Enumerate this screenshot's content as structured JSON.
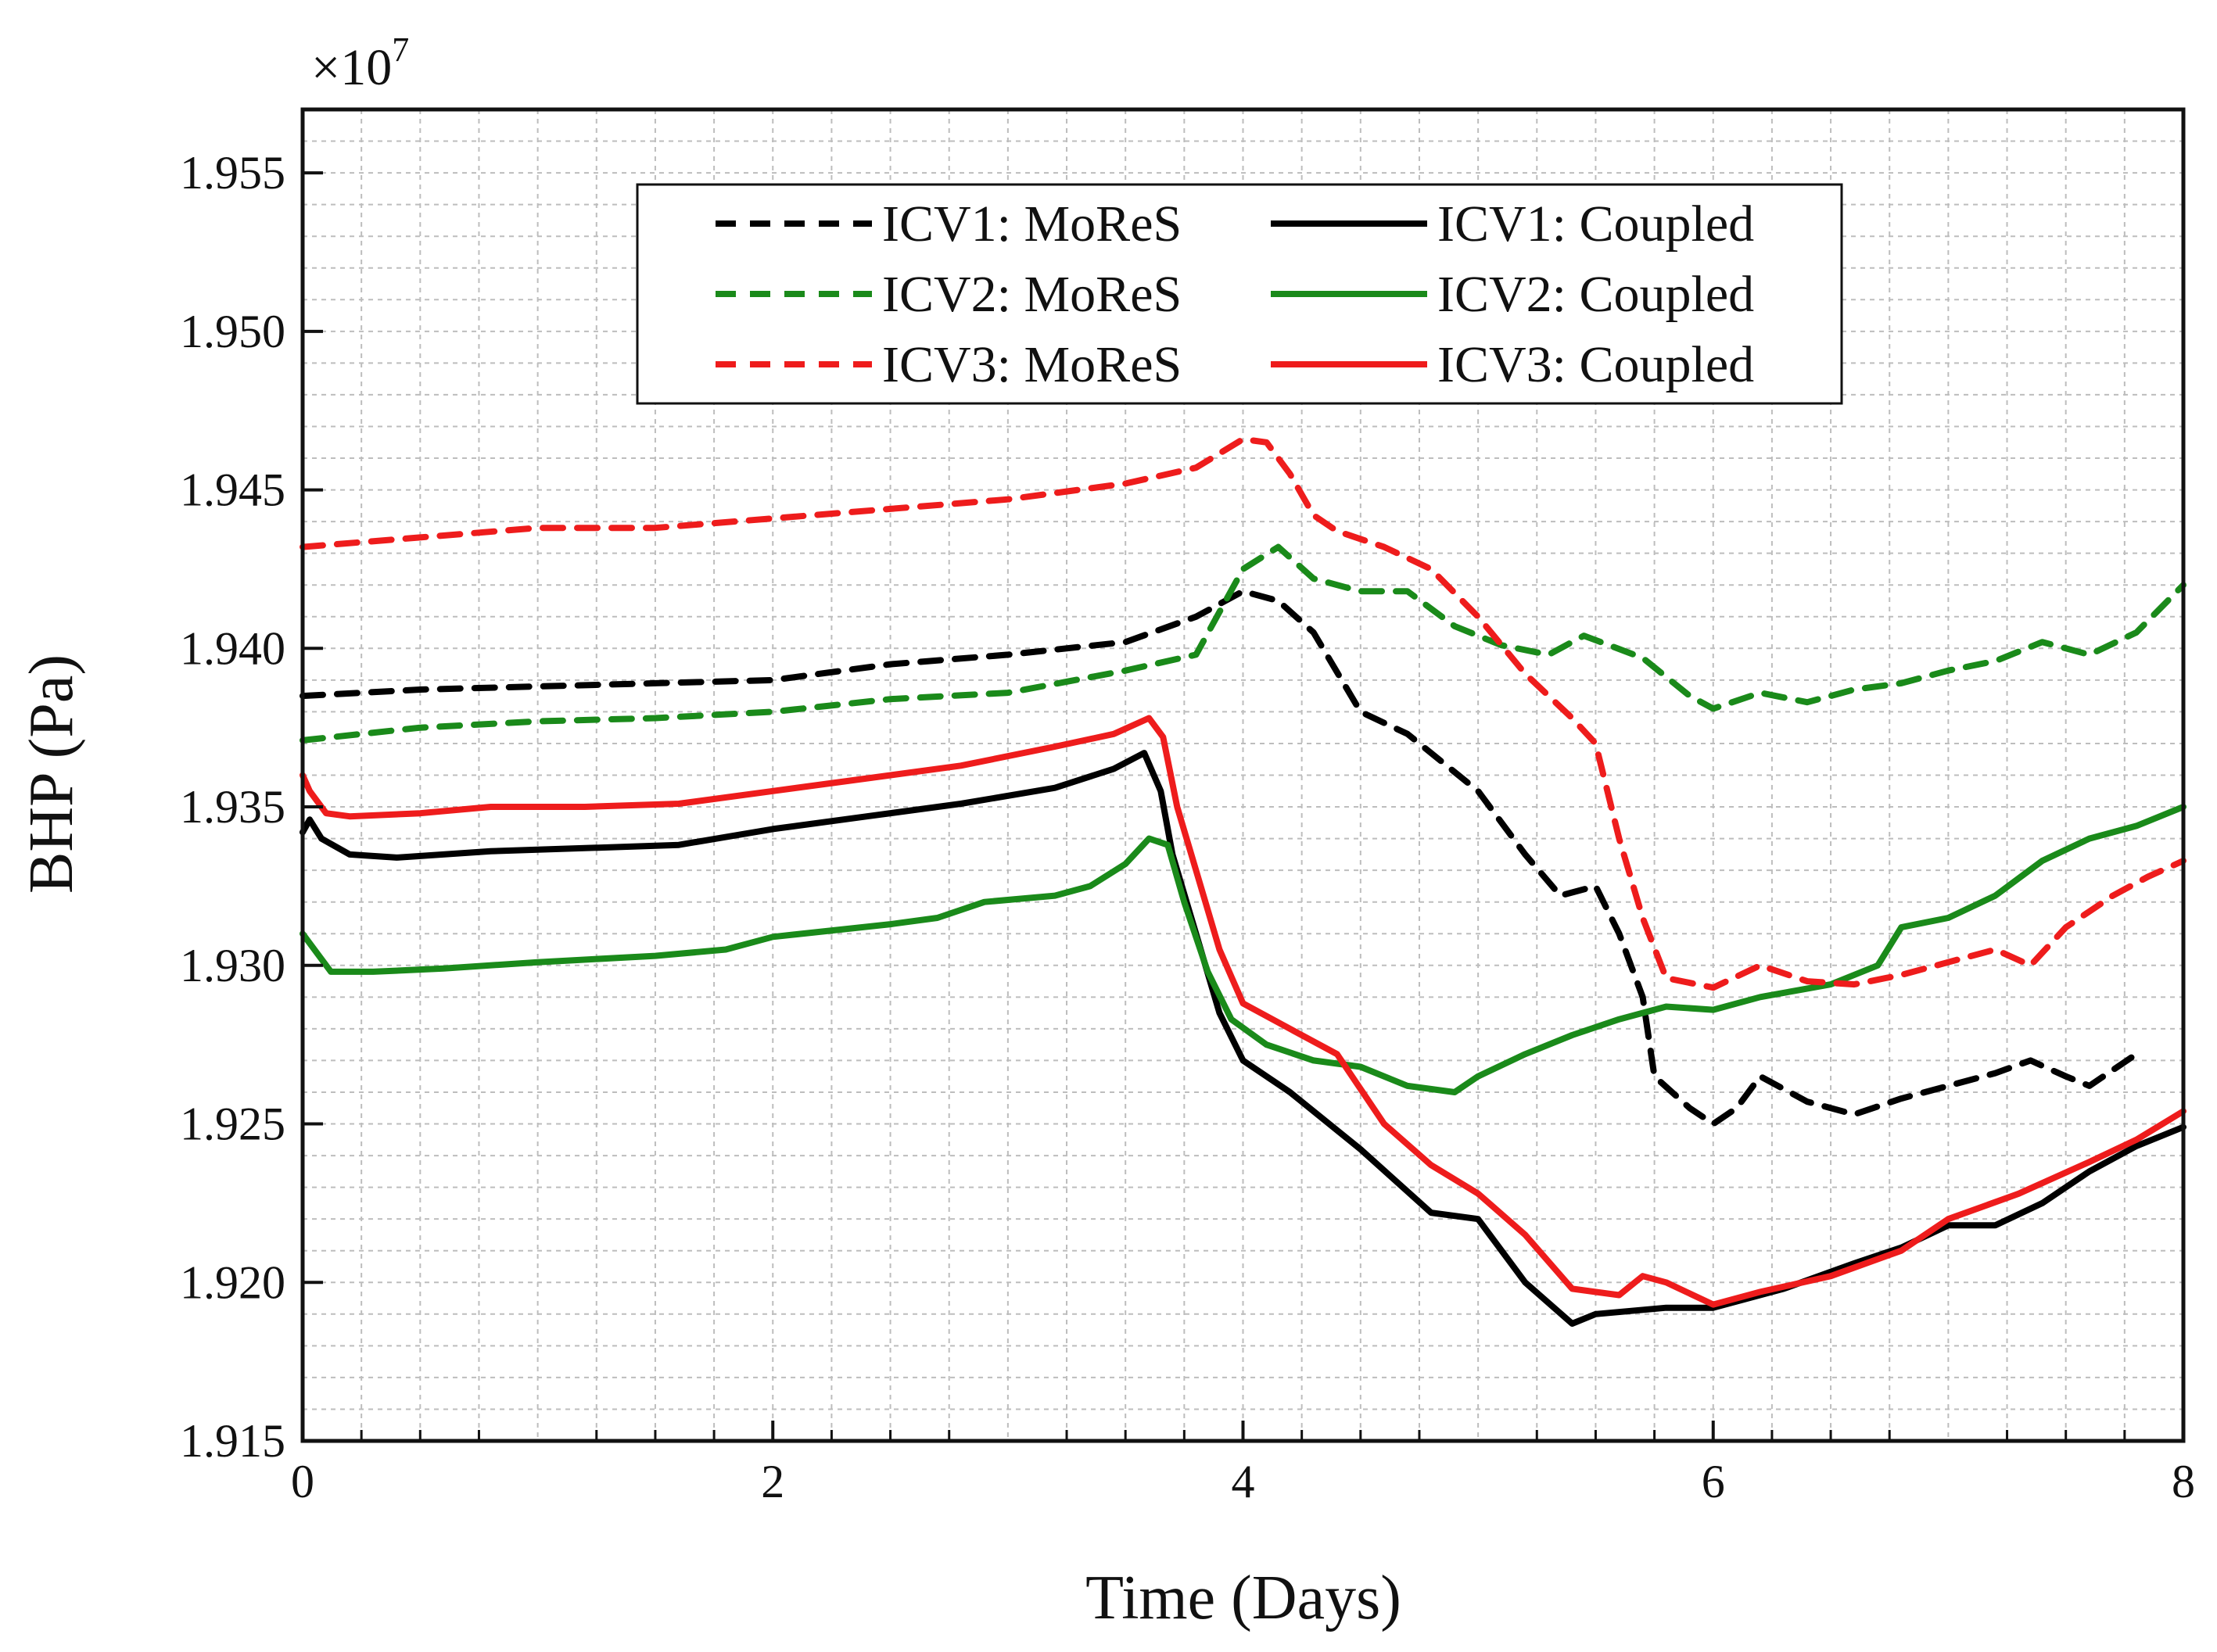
{
  "chart_data": {
    "type": "line",
    "title": "",
    "xlabel": "Time (Days)",
    "ylabel": "BHP (Pa)",
    "y_multiplier": "×10",
    "y_exponent": "7",
    "xlim": [
      0,
      8
    ],
    "ylim": [
      1.915,
      1.957
    ],
    "xticks": [
      0,
      2,
      4,
      6,
      8
    ],
    "yticks": [
      1.915,
      1.92,
      1.925,
      1.93,
      1.935,
      1.94,
      1.945,
      1.95,
      1.955
    ],
    "ytick_labels": [
      "1.915",
      "1.920",
      "1.925",
      "1.930",
      "1.935",
      "1.940",
      "1.945",
      "1.950",
      "1.955"
    ],
    "grid": true,
    "legend_position": "top-center",
    "series": [
      {
        "name": "ICV1: MoReS",
        "color": "#000000",
        "dashed": true,
        "x": [
          0,
          0.5,
          1.0,
          1.5,
          2.0,
          2.5,
          3.0,
          3.5,
          3.8,
          4.0,
          4.15,
          4.3,
          4.5,
          4.7,
          5.0,
          5.2,
          5.35,
          5.5,
          5.6,
          5.7,
          5.75,
          5.9,
          6.0,
          6.1,
          6.2,
          6.4,
          6.6,
          6.8,
          7.0,
          7.2,
          7.35,
          7.5,
          7.6,
          7.8
        ],
        "y": [
          1.9385,
          1.9387,
          1.9388,
          1.9389,
          1.939,
          1.9395,
          1.9398,
          1.9402,
          1.941,
          1.9418,
          1.9415,
          1.9405,
          1.938,
          1.9373,
          1.9355,
          1.9335,
          1.9322,
          1.9325,
          1.931,
          1.929,
          1.9265,
          1.9255,
          1.925,
          1.9255,
          1.9265,
          1.9257,
          1.9253,
          1.9258,
          1.9262,
          1.9266,
          1.927,
          1.9265,
          1.9262,
          1.9272
        ]
      },
      {
        "name": "ICV1: Coupled",
        "color": "#000000",
        "dashed": false,
        "x": [
          0,
          0.03,
          0.08,
          0.2,
          0.4,
          0.8,
          1.2,
          1.6,
          2.0,
          2.4,
          2.8,
          3.2,
          3.45,
          3.58,
          3.65,
          3.7,
          3.8,
          3.9,
          4.0,
          4.2,
          4.5,
          4.8,
          5.0,
          5.2,
          5.4,
          5.5,
          5.8,
          6.0,
          6.3,
          6.6,
          6.8,
          7.0,
          7.2,
          7.4,
          7.6,
          7.8,
          8.0
        ],
        "y": [
          1.9342,
          1.9346,
          1.934,
          1.9335,
          1.9334,
          1.9336,
          1.9337,
          1.9338,
          1.9343,
          1.9347,
          1.9351,
          1.9356,
          1.9362,
          1.9367,
          1.9355,
          1.9335,
          1.931,
          1.9285,
          1.927,
          1.926,
          1.9242,
          1.9222,
          1.922,
          1.92,
          1.9187,
          1.919,
          1.9192,
          1.9192,
          1.9198,
          1.9206,
          1.9211,
          1.9218,
          1.9218,
          1.9225,
          1.9235,
          1.9243,
          1.9249
        ]
      },
      {
        "name": "ICV2: MoReS",
        "color": "#1a8a1a",
        "dashed": true,
        "x": [
          0,
          0.5,
          1.0,
          1.5,
          2.0,
          2.5,
          3.0,
          3.5,
          3.8,
          4.0,
          4.15,
          4.3,
          4.5,
          4.7,
          4.9,
          5.1,
          5.3,
          5.45,
          5.7,
          5.9,
          6.0,
          6.2,
          6.4,
          6.6,
          6.8,
          7.0,
          7.2,
          7.4,
          7.6,
          7.8,
          8.0
        ],
        "y": [
          1.9371,
          1.9375,
          1.9377,
          1.9378,
          1.938,
          1.9384,
          1.9386,
          1.9393,
          1.9398,
          1.9425,
          1.9432,
          1.9422,
          1.9418,
          1.9418,
          1.9407,
          1.9401,
          1.9398,
          1.9404,
          1.9397,
          1.9385,
          1.9381,
          1.9386,
          1.9383,
          1.9387,
          1.9389,
          1.9393,
          1.9396,
          1.9402,
          1.9398,
          1.9405,
          1.942
        ]
      },
      {
        "name": "ICV2: Coupled",
        "color": "#1a8a1a",
        "dashed": false,
        "x": [
          0,
          0.05,
          0.12,
          0.3,
          0.6,
          1.0,
          1.5,
          1.8,
          2.0,
          2.5,
          2.7,
          2.9,
          3.2,
          3.35,
          3.5,
          3.6,
          3.68,
          3.75,
          3.85,
          3.95,
          4.1,
          4.3,
          4.5,
          4.7,
          4.9,
          5.0,
          5.2,
          5.4,
          5.6,
          5.7,
          5.8,
          6.0,
          6.2,
          6.5,
          6.7,
          6.8,
          7.0,
          7.2,
          7.4,
          7.6,
          7.8,
          8.0
        ],
        "y": [
          1.931,
          1.9305,
          1.9298,
          1.9298,
          1.9299,
          1.9301,
          1.9303,
          1.9305,
          1.9309,
          1.9313,
          1.9315,
          1.932,
          1.9322,
          1.9325,
          1.9332,
          1.934,
          1.9338,
          1.932,
          1.9298,
          1.9283,
          1.9275,
          1.927,
          1.9268,
          1.9262,
          1.926,
          1.9265,
          1.9272,
          1.9278,
          1.9283,
          1.9285,
          1.9287,
          1.9286,
          1.929,
          1.9294,
          1.93,
          1.9312,
          1.9315,
          1.9322,
          1.9333,
          1.934,
          1.9344,
          1.935
        ]
      },
      {
        "name": "ICV3: MoReS",
        "color": "#ee1c1c",
        "dashed": true,
        "x": [
          0,
          0.5,
          1.0,
          1.5,
          2.0,
          2.5,
          3.0,
          3.5,
          3.8,
          4.0,
          4.1,
          4.2,
          4.3,
          4.4,
          4.6,
          4.8,
          5.0,
          5.2,
          5.4,
          5.5,
          5.6,
          5.7,
          5.8,
          6.0,
          6.2,
          6.4,
          6.6,
          6.8,
          7.0,
          7.2,
          7.35,
          7.5,
          7.7,
          7.85,
          8.0
        ],
        "y": [
          1.9432,
          1.9435,
          1.9438,
          1.9438,
          1.9441,
          1.9444,
          1.9447,
          1.9452,
          1.9457,
          1.9466,
          1.9465,
          1.9455,
          1.9442,
          1.9437,
          1.9432,
          1.9425,
          1.941,
          1.9392,
          1.9378,
          1.937,
          1.934,
          1.9315,
          1.9296,
          1.9293,
          1.93,
          1.9295,
          1.9294,
          1.9297,
          1.9301,
          1.9305,
          1.93,
          1.9312,
          1.9322,
          1.9328,
          1.9333
        ]
      },
      {
        "name": "ICV3: Coupled",
        "color": "#ee1c1c",
        "dashed": false,
        "x": [
          0,
          0.03,
          0.1,
          0.2,
          0.5,
          0.8,
          1.2,
          1.6,
          2.0,
          2.4,
          2.8,
          3.2,
          3.45,
          3.6,
          3.66,
          3.72,
          3.8,
          3.9,
          4.0,
          4.2,
          4.4,
          4.6,
          4.8,
          5.0,
          5.2,
          5.4,
          5.6,
          5.7,
          5.8,
          6.0,
          6.2,
          6.5,
          6.8,
          7.0,
          7.3,
          7.6,
          7.8,
          8.0
        ],
        "y": [
          1.936,
          1.9355,
          1.9348,
          1.9347,
          1.9348,
          1.935,
          1.935,
          1.9351,
          1.9355,
          1.9359,
          1.9363,
          1.9369,
          1.9373,
          1.9378,
          1.9372,
          1.935,
          1.933,
          1.9305,
          1.9288,
          1.928,
          1.9272,
          1.925,
          1.9237,
          1.9228,
          1.9215,
          1.9198,
          1.9196,
          1.9202,
          1.92,
          1.9193,
          1.9197,
          1.9202,
          1.921,
          1.922,
          1.9228,
          1.9238,
          1.9245,
          1.9254
        ]
      }
    ]
  }
}
